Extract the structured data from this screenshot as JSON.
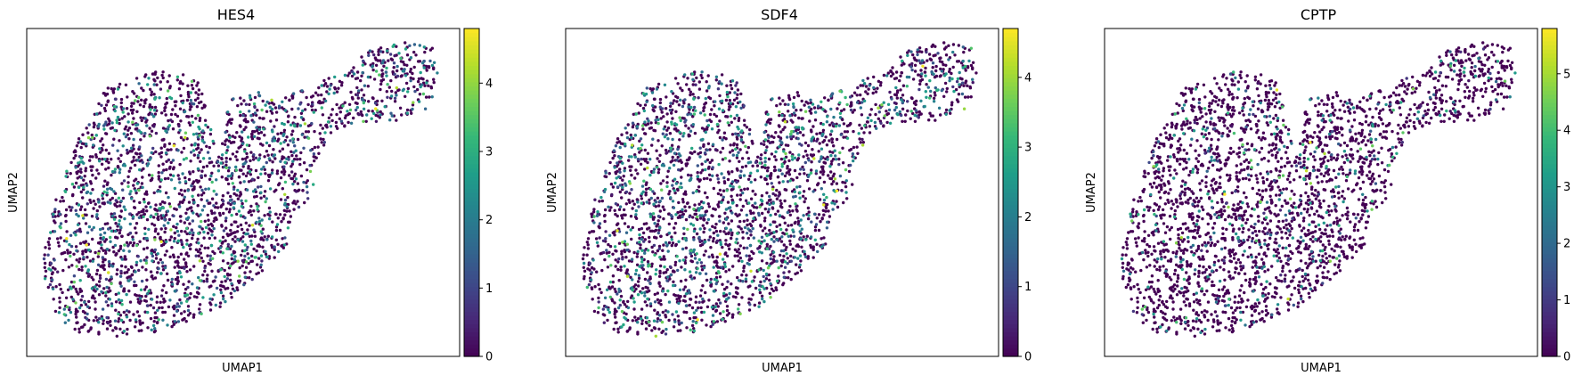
{
  "colormap": "viridis",
  "colors": {
    "viridis": [
      "#440154",
      "#482878",
      "#3e4989",
      "#31688e",
      "#26828e",
      "#1f9e89",
      "#35b779",
      "#6ece58",
      "#b5de2b",
      "#fde725"
    ],
    "frame": "#000000",
    "background": "#ffffff"
  },
  "chart_data": [
    {
      "type": "scatter",
      "title": "HES4",
      "xlabel": "UMAP1",
      "ylabel": "UMAP2",
      "grid": false,
      "colorbar": {
        "ticks": [
          0,
          1,
          2,
          3,
          4
        ],
        "tick_labels": [
          "0",
          "1",
          "2",
          "3",
          "4"
        ],
        "vmin": 0,
        "vmax": 4.8
      },
      "points_approx": 2700,
      "expression_profile": {
        "nonzero_fraction": 0.32,
        "mean_nonzero": 1.9,
        "max": 4.8
      }
    },
    {
      "type": "scatter",
      "title": "SDF4",
      "xlabel": "UMAP1",
      "ylabel": "UMAP2",
      "grid": false,
      "colorbar": {
        "ticks": [
          0,
          1,
          2,
          3,
          4
        ],
        "tick_labels": [
          "0",
          "1",
          "2",
          "3",
          "4"
        ],
        "vmin": 0,
        "vmax": 4.7
      },
      "points_approx": 2700,
      "expression_profile": {
        "nonzero_fraction": 0.36,
        "mean_nonzero": 1.9,
        "max": 4.7
      }
    },
    {
      "type": "scatter",
      "title": "CPTP",
      "xlabel": "UMAP1",
      "ylabel": "UMAP2",
      "grid": false,
      "colorbar": {
        "ticks": [
          0,
          1,
          2,
          3,
          4,
          5
        ],
        "tick_labels": [
          "0",
          "1",
          "2",
          "3",
          "4",
          "5"
        ],
        "vmin": 0,
        "vmax": 5.8
      },
      "points_approx": 2700,
      "expression_profile": {
        "nonzero_fraction": 0.14,
        "mean_nonzero": 2.6,
        "max": 5.8
      }
    }
  ]
}
